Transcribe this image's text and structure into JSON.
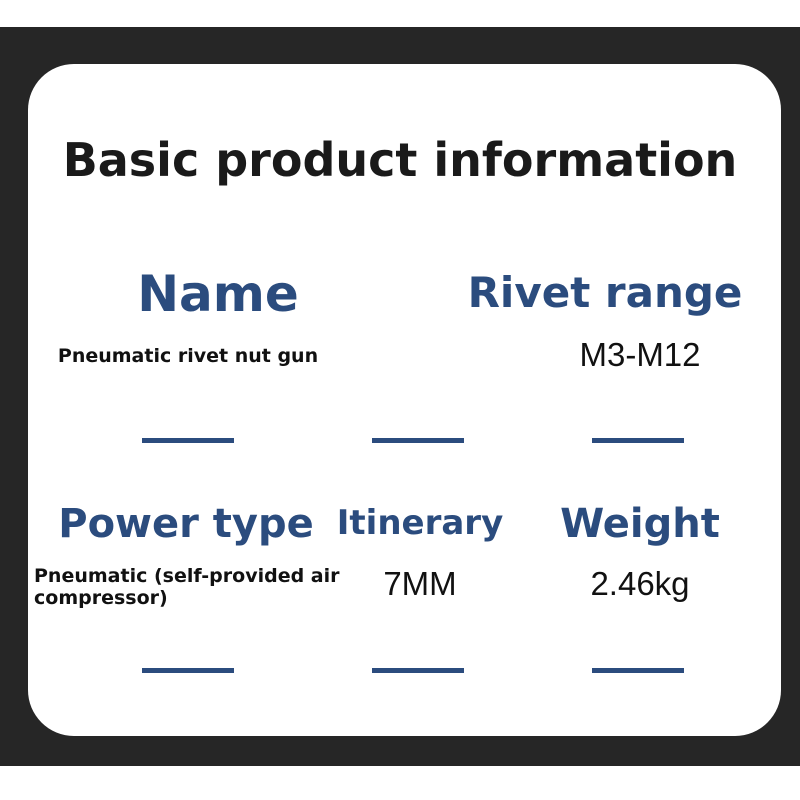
{
  "title": "Basic product information",
  "items": [
    {
      "label": "Name",
      "value": "Pneumatic rivet nut gun"
    },
    {
      "label": "Rivet range",
      "value": "M3-M12"
    },
    {
      "label": "Power type",
      "value": "Pneumatic (self-provided air compressor)"
    },
    {
      "label": "Itinerary",
      "value": "7MM"
    },
    {
      "label": "Weight",
      "value": "2.46kg"
    }
  ],
  "colors": {
    "accent": "#2b4c7e",
    "frame": "#262626"
  }
}
